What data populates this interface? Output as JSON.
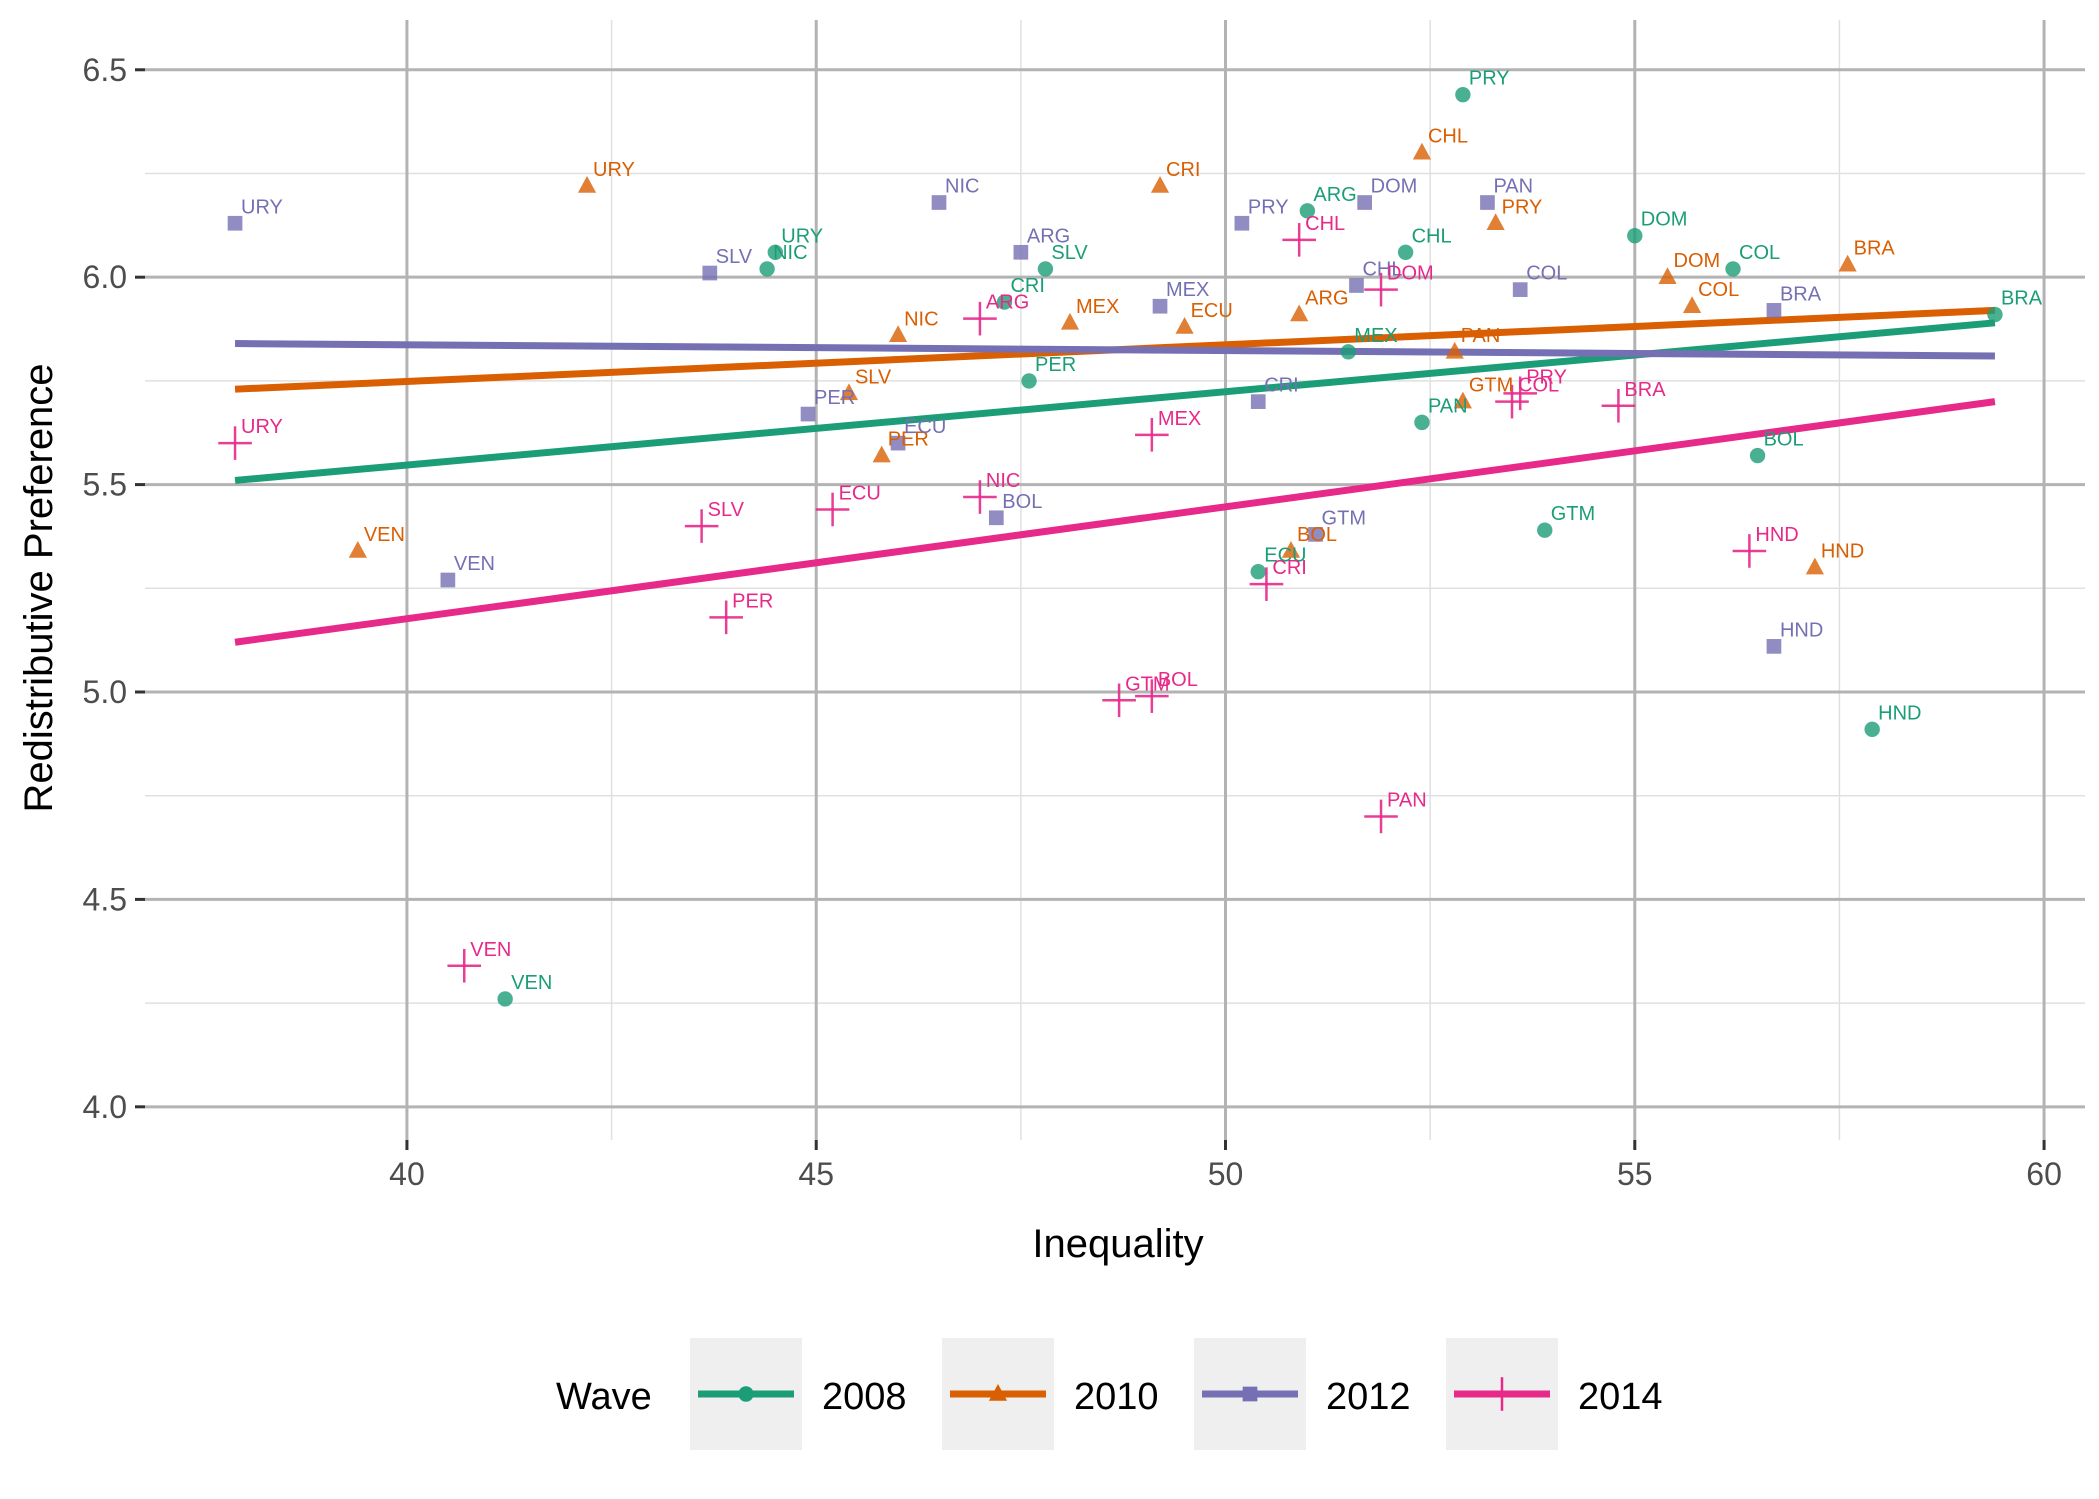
{
  "chart_data": {
    "type": "scatter",
    "title": "",
    "xlabel": "Inequality",
    "ylabel": "Redistributive Preference",
    "xlim": [
      36.8,
      60.5
    ],
    "ylim": [
      3.92,
      6.62
    ],
    "x_ticks": [
      40,
      45,
      50,
      55,
      60
    ],
    "y_ticks": [
      4.0,
      4.5,
      5.0,
      5.5,
      6.0,
      6.5
    ],
    "x_tick_labels": [
      "40",
      "45",
      "50",
      "55",
      "60"
    ],
    "y_tick_labels": [
      "4.0",
      "4.5",
      "5.0",
      "5.5",
      "6.0",
      "6.5"
    ],
    "grid": true,
    "legend": {
      "title": "Wave",
      "position": "bottom"
    },
    "series": [
      {
        "name": "2008",
        "color": "#1b9e77",
        "marker": "circle",
        "fit": {
          "x": [
            37.9,
            59.4
          ],
          "y": [
            5.51,
            5.89
          ]
        },
        "points": [
          {
            "label": "PRY",
            "x": 52.9,
            "y": 6.44
          },
          {
            "label": "ARG",
            "x": 51.0,
            "y": 6.16
          },
          {
            "label": "CHL",
            "x": 52.2,
            "y": 6.06
          },
          {
            "label": "DOM",
            "x": 55.0,
            "y": 6.1
          },
          {
            "label": "COL",
            "x": 56.2,
            "y": 6.02
          },
          {
            "label": "BRA",
            "x": 59.4,
            "y": 5.91
          },
          {
            "label": "URY",
            "x": 44.5,
            "y": 6.06
          },
          {
            "label": "NIC",
            "x": 44.4,
            "y": 6.02
          },
          {
            "label": "SLV",
            "x": 47.8,
            "y": 6.02
          },
          {
            "label": "CRI",
            "x": 47.3,
            "y": 5.94
          },
          {
            "label": "MEX",
            "x": 51.5,
            "y": 5.82
          },
          {
            "label": "PER",
            "x": 47.6,
            "y": 5.75
          },
          {
            "label": "PAN",
            "x": 52.4,
            "y": 5.65
          },
          {
            "label": "BOL",
            "x": 56.5,
            "y": 5.57
          },
          {
            "label": "GTM",
            "x": 53.9,
            "y": 5.39
          },
          {
            "label": "ECU",
            "x": 50.4,
            "y": 5.29
          },
          {
            "label": "HND",
            "x": 57.9,
            "y": 4.91
          },
          {
            "label": "VEN",
            "x": 41.2,
            "y": 4.26
          }
        ]
      },
      {
        "name": "2010",
        "color": "#d95f02",
        "marker": "triangle",
        "fit": {
          "x": [
            37.9,
            59.4
          ],
          "y": [
            5.73,
            5.92
          ]
        },
        "points": [
          {
            "label": "CHL",
            "x": 52.4,
            "y": 6.3
          },
          {
            "label": "URY",
            "x": 42.2,
            "y": 6.22
          },
          {
            "label": "CRI",
            "x": 49.2,
            "y": 6.22
          },
          {
            "label": "PRY",
            "x": 53.3,
            "y": 6.13
          },
          {
            "label": "BRA",
            "x": 57.6,
            "y": 6.03
          },
          {
            "label": "DOM",
            "x": 55.4,
            "y": 6.0
          },
          {
            "label": "COL",
            "x": 55.7,
            "y": 5.93
          },
          {
            "label": "ARG",
            "x": 50.9,
            "y": 5.91
          },
          {
            "label": "MEX",
            "x": 48.1,
            "y": 5.89
          },
          {
            "label": "ECU",
            "x": 49.5,
            "y": 5.88
          },
          {
            "label": "NIC",
            "x": 46.0,
            "y": 5.86
          },
          {
            "label": "PAN",
            "x": 52.8,
            "y": 5.82
          },
          {
            "label": "SLV",
            "x": 45.4,
            "y": 5.72
          },
          {
            "label": "GTM",
            "x": 52.9,
            "y": 5.7
          },
          {
            "label": "PER",
            "x": 45.8,
            "y": 5.57
          },
          {
            "label": "VEN",
            "x": 39.4,
            "y": 5.34
          },
          {
            "label": "BOL",
            "x": 50.8,
            "y": 5.34
          },
          {
            "label": "HND",
            "x": 57.2,
            "y": 5.3
          }
        ]
      },
      {
        "name": "2012",
        "color": "#7570b3",
        "marker": "square",
        "fit": {
          "x": [
            37.9,
            59.4
          ],
          "y": [
            5.84,
            5.81
          ]
        },
        "points": [
          {
            "label": "URY",
            "x": 37.9,
            "y": 6.13
          },
          {
            "label": "NIC",
            "x": 46.5,
            "y": 6.18
          },
          {
            "label": "PRY",
            "x": 50.2,
            "y": 6.13
          },
          {
            "label": "DOM",
            "x": 51.7,
            "y": 6.18
          },
          {
            "label": "PAN",
            "x": 53.2,
            "y": 6.18
          },
          {
            "label": "ARG",
            "x": 47.5,
            "y": 6.06
          },
          {
            "label": "SLV",
            "x": 43.7,
            "y": 6.01
          },
          {
            "label": "CHL",
            "x": 51.6,
            "y": 5.98
          },
          {
            "label": "COL",
            "x": 53.6,
            "y": 5.97
          },
          {
            "label": "MEX",
            "x": 49.2,
            "y": 5.93
          },
          {
            "label": "BRA",
            "x": 56.7,
            "y": 5.92
          },
          {
            "label": "CRI",
            "x": 50.4,
            "y": 5.7
          },
          {
            "label": "PER",
            "x": 44.9,
            "y": 5.67
          },
          {
            "label": "ECU",
            "x": 46.0,
            "y": 5.6
          },
          {
            "label": "BOL",
            "x": 47.2,
            "y": 5.42
          },
          {
            "label": "GTM",
            "x": 51.1,
            "y": 5.38
          },
          {
            "label": "VEN",
            "x": 40.5,
            "y": 5.27
          },
          {
            "label": "HND",
            "x": 56.7,
            "y": 5.11
          }
        ]
      },
      {
        "name": "2014",
        "color": "#e7298a",
        "marker": "cross",
        "fit": {
          "x": [
            37.9,
            59.4
          ],
          "y": [
            5.12,
            5.7
          ]
        },
        "points": [
          {
            "label": "CHL",
            "x": 50.9,
            "y": 6.09
          },
          {
            "label": "DOM",
            "x": 51.9,
            "y": 5.97
          },
          {
            "label": "ARG",
            "x": 47.0,
            "y": 5.9
          },
          {
            "label": "PRY",
            "x": 53.6,
            "y": 5.72
          },
          {
            "label": "COL",
            "x": 53.5,
            "y": 5.7
          },
          {
            "label": "BRA",
            "x": 54.8,
            "y": 5.69
          },
          {
            "label": "MEX",
            "x": 49.1,
            "y": 5.62
          },
          {
            "label": "URY",
            "x": 37.9,
            "y": 5.6
          },
          {
            "label": "NIC",
            "x": 47.0,
            "y": 5.47
          },
          {
            "label": "ECU",
            "x": 45.2,
            "y": 5.44
          },
          {
            "label": "SLV",
            "x": 43.6,
            "y": 5.4
          },
          {
            "label": "HND",
            "x": 56.4,
            "y": 5.34
          },
          {
            "label": "CRI",
            "x": 50.5,
            "y": 5.26
          },
          {
            "label": "PER",
            "x": 43.9,
            "y": 5.18
          },
          {
            "label": "BOL",
            "x": 49.1,
            "y": 4.99
          },
          {
            "label": "GTM",
            "x": 48.7,
            "y": 4.98
          },
          {
            "label": "PAN",
            "x": 51.9,
            "y": 4.7
          },
          {
            "label": "VEN",
            "x": 40.7,
            "y": 4.34
          }
        ]
      }
    ]
  }
}
